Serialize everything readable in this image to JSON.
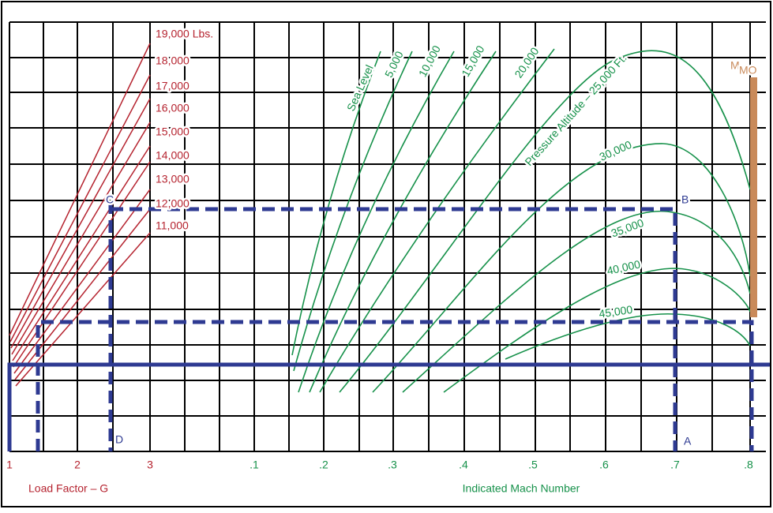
{
  "load_factor_axis": {
    "title": "Load Factor – G",
    "ticks": [
      "1",
      "2",
      "3"
    ]
  },
  "mach_axis": {
    "title": "Indicated Mach Number",
    "ticks": [
      ".1",
      ".2",
      ".3",
      ".4",
      ".5",
      ".6",
      ".7",
      ".8"
    ]
  },
  "weights": [
    "19,000 Lbs.",
    "18,000",
    "17,000",
    "16,000",
    "15,000",
    "14,000",
    "13,000",
    "12,000",
    "11,000"
  ],
  "altitudes": [
    "Sea Level",
    "5,000",
    "10,000",
    "15,000",
    "20,000",
    "Pressure Altitude – 25,000 Ft.",
    "30,000",
    "35,000",
    "40,000",
    "45,000"
  ],
  "points": [
    "A",
    "B",
    "C",
    "D"
  ],
  "mmo": {
    "main": "M",
    "sub": "MO"
  }
}
